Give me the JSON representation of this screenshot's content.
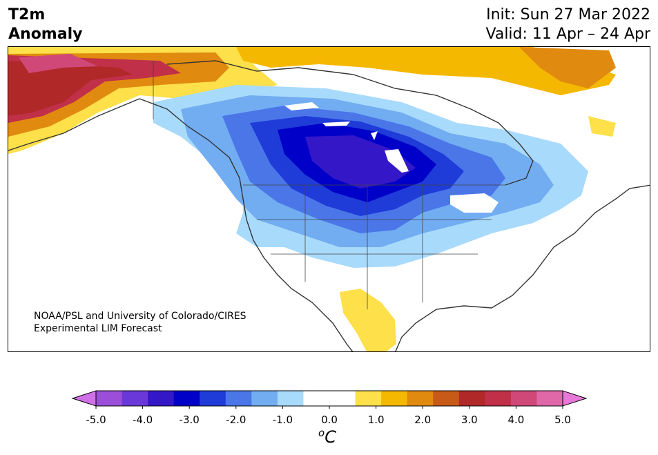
{
  "title": {
    "line1": "T2m",
    "line2": "Anomaly"
  },
  "dates": {
    "init": "Init: Sun 27 Mar 2022",
    "valid": "Valid: 11 Apr – 24 Apr"
  },
  "credit": {
    "line1": "NOAA/PSL and University of Colorado/CIRES",
    "line2": "Experimental LIM Forecast"
  },
  "colorbar": {
    "ticks": [
      "-5.0",
      "-4.0",
      "-3.0",
      "-2.0",
      "-1.0",
      "0.0",
      "1.0",
      "2.0",
      "3.0",
      "4.0",
      "5.0"
    ],
    "unit_prefix": "o",
    "unit": "C",
    "colors": [
      "#d070e8",
      "#9b4fd8",
      "#6a38d8",
      "#3418c8",
      "#0000c8",
      "#1f3bd8",
      "#4a76e8",
      "#72adf2",
      "#a8dafb",
      "#ffffff",
      "#ffffff",
      "#fde04a",
      "#f5b800",
      "#e08a10",
      "#c85a18",
      "#b02828",
      "#c03048",
      "#d04878",
      "#e068a8",
      "#e878d8"
    ]
  }
}
